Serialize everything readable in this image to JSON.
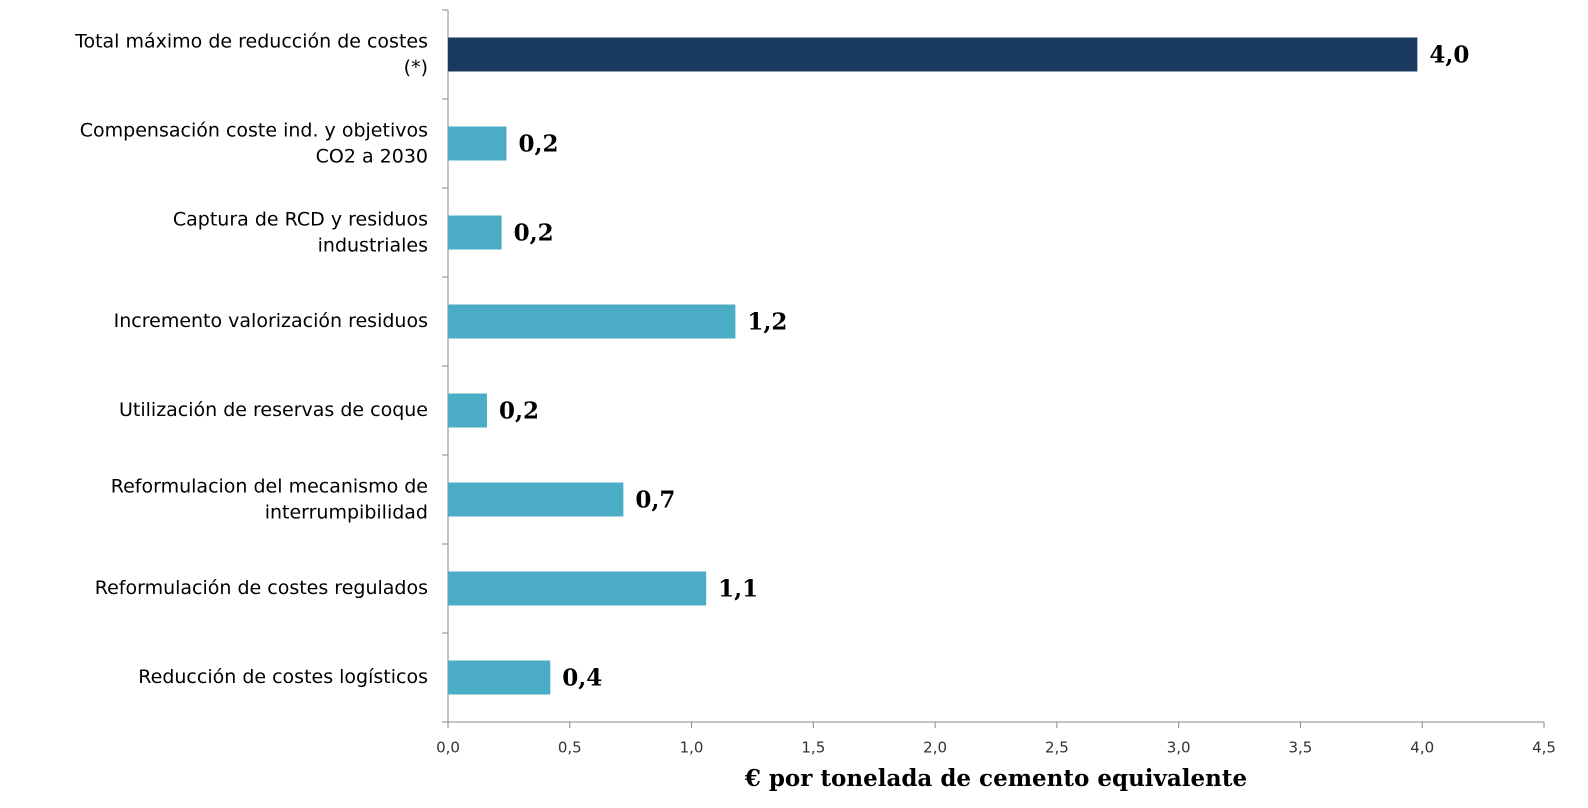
{
  "chart_data": {
    "type": "bar",
    "orientation": "horizontal",
    "x_label": "€ por tonelada de cemento equivalente",
    "categories": [
      "Total máximo de reducción de costes (*)",
      "Compensación coste ind. y objetivos CO2 a 2030",
      "Captura de RCD y residuos industriales",
      "Incremento valorización residuos",
      "Utilización de reservas de coque",
      "Reformulacion del mecanismo de interrumpibilidad",
      "Reformulación de costes regulados",
      "Reducción de costes logísticos"
    ],
    "values": [
      3.98,
      0.24,
      0.22,
      1.18,
      0.16,
      0.72,
      1.06,
      0.42
    ],
    "value_labels": [
      "4,0",
      "0,2",
      "0,2",
      "1,2",
      "0,2",
      "0,7",
      "1,1",
      "0,4"
    ],
    "colors": [
      "#1b3a5f",
      "#4bacc6",
      "#4bacc6",
      "#4bacc6",
      "#4bacc6",
      "#4bacc6",
      "#4bacc6",
      "#4bacc6"
    ],
    "xlim": [
      0,
      4.5
    ],
    "xticks": [
      {
        "value": 0,
        "label": "0,0"
      },
      {
        "value": 0.5,
        "label": "0,5"
      },
      {
        "value": 1,
        "label": "1,0"
      },
      {
        "value": 1.5,
        "label": "1,5"
      },
      {
        "value": 2,
        "label": "2,0"
      },
      {
        "value": 2.5,
        "label": "2,5"
      },
      {
        "value": 3,
        "label": "3,0"
      },
      {
        "value": 3.5,
        "label": "3,5"
      },
      {
        "value": 4,
        "label": "4,0"
      },
      {
        "value": 4.5,
        "label": "4,5"
      }
    ]
  }
}
